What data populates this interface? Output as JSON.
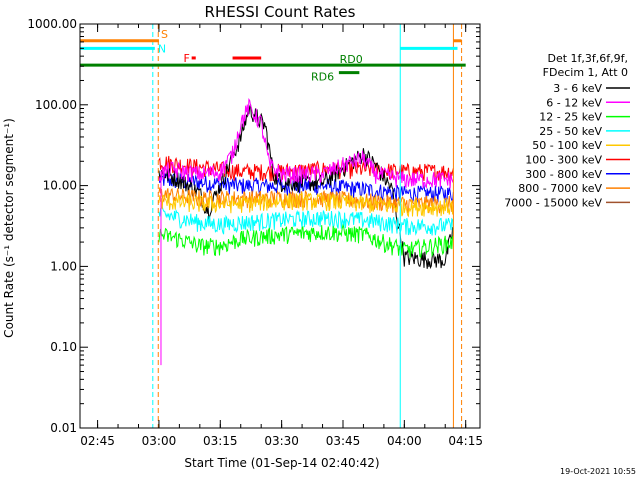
{
  "chart_data": {
    "type": "line",
    "title": "RHESSI Count Rates",
    "xlabel": "Start Time (01-Sep-14 02:40:42)",
    "ylabel": "Count Rate (s⁻¹ detector segment⁻¹)",
    "y_scale": "log",
    "ylim": [
      0.01,
      1000
    ],
    "xlim": [
      "02:40:42",
      "04:18:30"
    ],
    "x_ticks": [
      "02:45",
      "03:00",
      "03:15",
      "03:30",
      "03:45",
      "04:00",
      "04:15"
    ],
    "y_ticks": [
      "0.01",
      "0.10",
      "1.00",
      "10.00",
      "100.00",
      "1000.00"
    ],
    "grid": false,
    "legend_position": "right",
    "legend_header": [
      "Det 1f,3f,6f,9f,",
      "FDecim 1, Att 0"
    ],
    "series": [
      {
        "name": "3 - 6 keV",
        "color": "#000000",
        "x": [
          "03:00",
          "03:05",
          "03:10",
          "03:12",
          "03:15",
          "03:20",
          "03:22",
          "03:26",
          "03:28",
          "03:30",
          "03:40",
          "03:50",
          "03:53",
          "03:57",
          "04:00",
          "04:10",
          "04:12"
        ],
        "y": [
          15,
          12,
          8,
          5,
          10,
          40,
          90,
          55,
          14,
          11,
          11,
          25,
          18,
          9,
          1.3,
          1.2,
          3
        ]
      },
      {
        "name": "6 - 12 keV",
        "color": "#ff00ff",
        "x": [
          "03:00",
          "03:03",
          "03:06",
          "03:10",
          "03:15",
          "03:18",
          "03:20",
          "03:22",
          "03:25",
          "03:27",
          "03:30",
          "03:40",
          "03:45",
          "03:50",
          "03:53",
          "04:00",
          "04:12"
        ],
        "y": [
          14,
          16,
          15,
          14,
          15,
          25,
          60,
          95,
          60,
          18,
          14,
          14,
          18,
          22,
          14,
          12,
          12
        ]
      },
      {
        "name": "12 - 25 keV",
        "color": "#00ff00",
        "x": [
          "03:00",
          "03:05",
          "03:10",
          "03:15",
          "03:20",
          "03:30",
          "03:40",
          "03:50",
          "04:00",
          "04:12"
        ],
        "y": [
          2.5,
          2.2,
          1.8,
          1.8,
          2.2,
          2.5,
          2.7,
          2.5,
          1.6,
          2.0
        ]
      },
      {
        "name": "25 - 50 keV",
        "color": "#00ffff",
        "x": [
          "03:00",
          "03:05",
          "03:10",
          "03:15",
          "03:20",
          "03:30",
          "03:40",
          "03:50",
          "04:00",
          "04:12"
        ],
        "y": [
          4.5,
          4.0,
          3.5,
          3.3,
          3.5,
          3.8,
          4.0,
          3.8,
          3.2,
          3.2
        ]
      },
      {
        "name": "50 - 100 keV",
        "color": "#ffc800",
        "x": [
          "03:00",
          "03:10",
          "03:20",
          "03:30",
          "03:40",
          "03:50",
          "04:00",
          "04:12"
        ],
        "y": [
          6.5,
          6.0,
          6.0,
          6.5,
          6.5,
          6.0,
          5.5,
          5.5
        ]
      },
      {
        "name": "100 - 300 keV",
        "color": "#ff0000",
        "x": [
          "03:00",
          "03:10",
          "03:20",
          "03:30",
          "03:40",
          "03:50",
          "04:00",
          "04:12"
        ],
        "y": [
          20,
          17,
          15,
          15,
          16,
          16,
          15,
          15
        ]
      },
      {
        "name": "300 - 800 keV",
        "color": "#0000ff",
        "x": [
          "03:00",
          "03:10",
          "03:20",
          "03:30",
          "03:40",
          "03:50",
          "04:00",
          "04:12"
        ],
        "y": [
          12,
          11,
          10,
          10,
          10,
          9,
          8,
          8
        ]
      },
      {
        "name": "800 - 7000 keV",
        "color": "#ff8000",
        "x": [
          "03:00",
          "03:10",
          "03:20",
          "03:30",
          "03:40",
          "03:50",
          "04:00",
          "04:12"
        ],
        "y": [
          8,
          7,
          7,
          7,
          7,
          6.5,
          6,
          6
        ]
      },
      {
        "name": "7000 - 15000 keV",
        "color": "#a0522d",
        "x": [],
        "y": []
      }
    ],
    "flags": [
      {
        "label": "S",
        "color": "#ff8000",
        "y": 620,
        "segments": [
          [
            "02:40:42",
            "03:00"
          ],
          [
            "04:12",
            "04:14"
          ]
        ]
      },
      {
        "label": "N",
        "color": "#00ffff",
        "y": 500,
        "segments": [
          [
            "02:40:42",
            "02:59"
          ],
          [
            "03:59",
            "04:13"
          ]
        ]
      },
      {
        "label": "F",
        "color": "#ff0000",
        "y": 380,
        "segments": [
          [
            "03:08",
            "03:09"
          ],
          [
            "03:18",
            "03:25"
          ]
        ]
      },
      {
        "label": "RD0",
        "color": "#008000",
        "y": 310,
        "segments": [
          [
            "02:40:42",
            "04:15"
          ]
        ]
      },
      {
        "label": "RD6",
        "color": "#008000",
        "y": 250,
        "segments": [
          [
            "03:44",
            "03:49"
          ]
        ]
      }
    ],
    "vertical_lines": [
      {
        "x": "02:40:42",
        "color": "#00ffff",
        "style": "solid"
      },
      {
        "x": "02:58:30",
        "color": "#00ffff",
        "style": "dashed"
      },
      {
        "x": "02:59:50",
        "color": "#ff8000",
        "style": "dashed"
      },
      {
        "x": "03:59",
        "color": "#00ffff",
        "style": "solid"
      },
      {
        "x": "04:12",
        "color": "#ff8000",
        "style": "solid"
      },
      {
        "x": "04:14",
        "color": "#ff8000",
        "style": "dashed"
      }
    ]
  },
  "footer_date": "19-Oct-2021 10:55"
}
